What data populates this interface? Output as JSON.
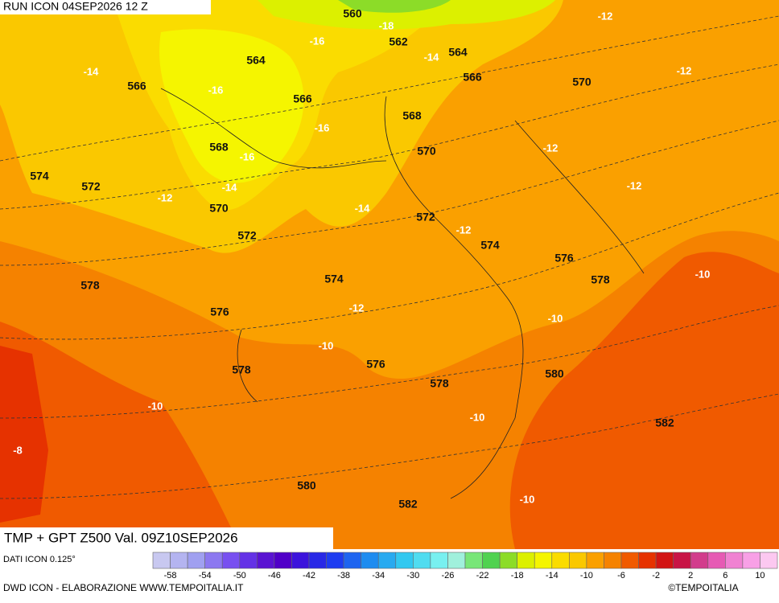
{
  "header": {
    "run": "RUN ICON 04SEP2026 12 Z",
    "title": "TMP + GPT Z500 Val. 09Z10SEP2026",
    "source": "DATI ICON 0.125°",
    "credit": "DWD ICON - ELABORAZIONE WWW.TEMPOITALIA.IT",
    "copyright": "©TEMPOITALIA"
  },
  "gpt_labels": [
    560,
    562,
    564,
    564,
    566,
    566,
    566,
    570,
    568,
    568,
    570,
    574,
    572,
    570,
    572,
    572,
    574,
    576,
    578,
    574,
    578,
    576,
    576,
    578,
    580,
    578,
    582,
    580,
    582
  ],
  "temp_labels": [
    -18,
    -12,
    -16,
    -14,
    -14,
    -16,
    -12,
    -16,
    -12,
    -16,
    -14,
    -12,
    -12,
    -14,
    -12,
    -10,
    -12,
    -10,
    -10,
    -10,
    -10,
    -8,
    -10
  ],
  "colorbar": {
    "colors": [
      "#c8c8f0",
      "#b4b4f0",
      "#a0a0f0",
      "#8c78f0",
      "#7850f0",
      "#6432e6",
      "#5a14d2",
      "#5000c8",
      "#3c14dc",
      "#2828e6",
      "#1e3cf0",
      "#1e64f0",
      "#1e8cf0",
      "#28aaf0",
      "#32c8f0",
      "#50dcf0",
      "#78f0f0",
      "#a0f0dc",
      "#78e678",
      "#50d250",
      "#8cdc28",
      "#dcf000",
      "#f5f500",
      "#fadc00",
      "#fac800",
      "#faa000",
      "#f58200",
      "#f05a00",
      "#e63200",
      "#d21414",
      "#c81446",
      "#d23c8c",
      "#e65ab4",
      "#f082d2",
      "#f8a0e6",
      "#fcc8f0"
    ],
    "ticks": [
      -58,
      -54,
      -50,
      -46,
      -42,
      -38,
      -34,
      -30,
      -26,
      -22,
      -18,
      -14,
      -10,
      -6,
      -2,
      2,
      6,
      10
    ]
  }
}
